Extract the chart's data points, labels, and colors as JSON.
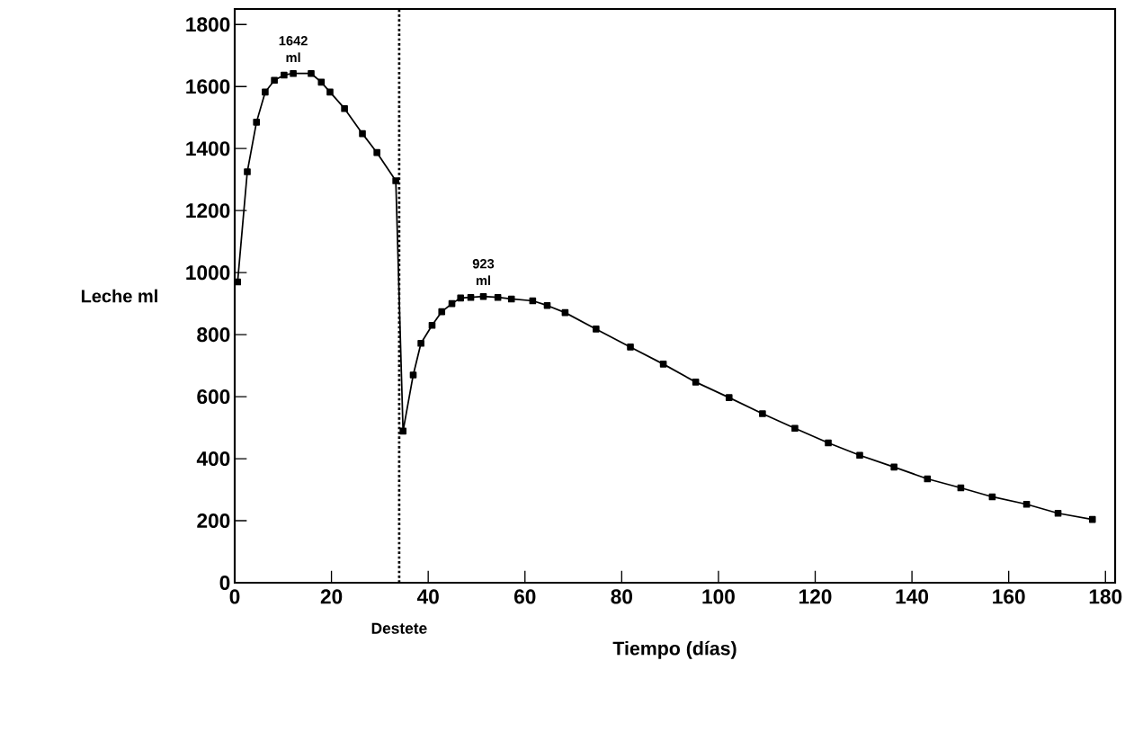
{
  "chart_data": {
    "type": "line",
    "xlabel": "Tiempo (días)",
    "ylabel": "Leche ml",
    "x": [
      0.6,
      2.6,
      4.5,
      6.3,
      8.2,
      10.2,
      12.1,
      15.8,
      17.9,
      19.7,
      22.7,
      26.4,
      29.4,
      33.3,
      34.8,
      36.9,
      38.5,
      40.8,
      42.8,
      44.9,
      46.7,
      48.8,
      51.4,
      54.4,
      57.2,
      61.6,
      64.6,
      68.3,
      74.7,
      81.8,
      88.6,
      95.3,
      102.2,
      109.1,
      115.8,
      122.7,
      129.2,
      136.3,
      143.2,
      150.1,
      156.6,
      163.7,
      170.2,
      177.3
    ],
    "series": [
      {
        "color": "#000000",
        "values": [
          970,
          1325,
          1485,
          1582,
          1620,
          1637,
          1642,
          1642,
          1614,
          1582,
          1529,
          1448,
          1387,
          1296,
          489,
          670,
          772,
          830,
          874,
          900,
          918,
          920,
          923,
          920,
          915,
          909,
          894,
          871,
          818,
          760,
          705,
          647,
          597,
          545,
          498,
          451,
          411,
          373,
          335,
          306,
          277,
          253,
          224,
          204
        ]
      }
    ],
    "xlim": [
      0,
      182
    ],
    "ylim": [
      0,
      1850
    ],
    "xticks": [
      0,
      20,
      40,
      60,
      80,
      100,
      120,
      140,
      160,
      180
    ],
    "yticks": [
      0,
      200,
      400,
      600,
      800,
      1000,
      1200,
      1400,
      1600,
      1800
    ],
    "marker": "square",
    "line_style": "solid",
    "grid": false,
    "ref_lines": [
      {
        "axis": "x",
        "value": 34,
        "label": "Destete",
        "line_style": "dotted"
      }
    ],
    "annotations": [
      {
        "text": "1642 ml",
        "x": 12.1,
        "y": 1642
      },
      {
        "text": "923 ml",
        "x": 51.4,
        "y": 923
      }
    ]
  }
}
